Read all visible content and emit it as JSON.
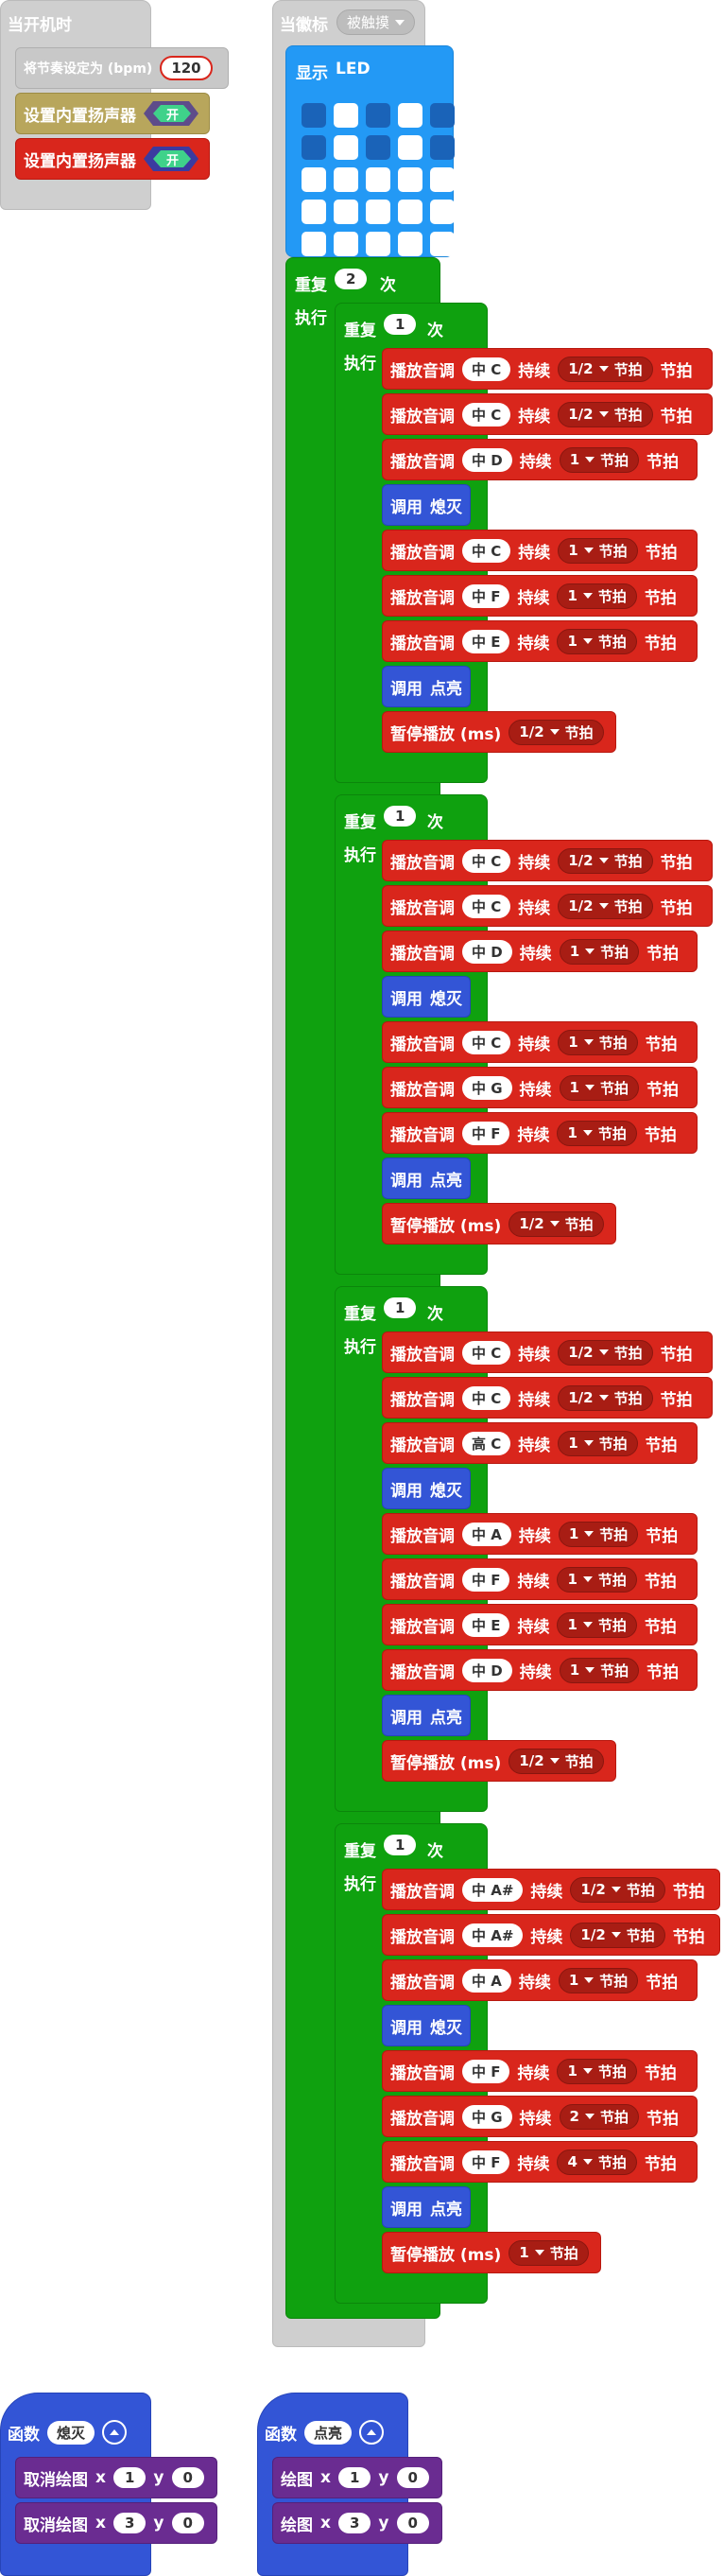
{
  "on_start": {
    "hat": "当开机时",
    "set_tempo_label": "将节奏设定为 (bpm)",
    "tempo_value": "120",
    "speaker1_label": "设置内置扬声器",
    "speaker1_value": "开",
    "speaker2_label": "设置内置扬声器",
    "speaker2_value": "开"
  },
  "on_gesture": {
    "hat": "当徽标",
    "gesture_value": "被触摸",
    "show_led_label": "显示",
    "show_led_suffix": "LED",
    "led_grid": [
      [
        0,
        1,
        0,
        1,
        0
      ],
      [
        0,
        1,
        0,
        1,
        0
      ],
      [
        1,
        1,
        1,
        1,
        1
      ],
      [
        1,
        1,
        1,
        1,
        1
      ],
      [
        1,
        1,
        1,
        1,
        1
      ]
    ],
    "colors": {
      "led_on": "#ffffff",
      "led_off": "#1a63b8"
    }
  },
  "repeat_outer": {
    "label": "重复",
    "count": "2",
    "suffix": "次",
    "do": "执行"
  },
  "repeat_inner": [
    {
      "label": "重复",
      "count": "1",
      "suffix": "次",
      "do": "执行",
      "rows": [
        {
          "type": "note",
          "note": "中 C",
          "beat": "1/2"
        },
        {
          "type": "note",
          "note": "中 C",
          "beat": "1/2"
        },
        {
          "type": "note",
          "note": "中 D",
          "beat": "1"
        },
        {
          "type": "call",
          "name": "熄灭"
        },
        {
          "type": "note",
          "note": "中 C",
          "beat": "1"
        },
        {
          "type": "note",
          "note": "中 F",
          "beat": "1"
        },
        {
          "type": "note",
          "note": "中 E",
          "beat": "1"
        },
        {
          "type": "call",
          "name": "点亮"
        },
        {
          "type": "rest",
          "beat": "1/2"
        }
      ]
    },
    {
      "label": "重复",
      "count": "1",
      "suffix": "次",
      "do": "执行",
      "rows": [
        {
          "type": "note",
          "note": "中 C",
          "beat": "1/2"
        },
        {
          "type": "note",
          "note": "中 C",
          "beat": "1/2"
        },
        {
          "type": "note",
          "note": "中 D",
          "beat": "1"
        },
        {
          "type": "call",
          "name": "熄灭"
        },
        {
          "type": "note",
          "note": "中 C",
          "beat": "1"
        },
        {
          "type": "note",
          "note": "中 G",
          "beat": "1"
        },
        {
          "type": "note",
          "note": "中 F",
          "beat": "1"
        },
        {
          "type": "call",
          "name": "点亮"
        },
        {
          "type": "rest",
          "beat": "1/2"
        }
      ]
    },
    {
      "label": "重复",
      "count": "1",
      "suffix": "次",
      "do": "执行",
      "rows": [
        {
          "type": "note",
          "note": "中 C",
          "beat": "1/2"
        },
        {
          "type": "note",
          "note": "中 C",
          "beat": "1/2"
        },
        {
          "type": "note",
          "note": "高 C",
          "beat": "1"
        },
        {
          "type": "call",
          "name": "熄灭"
        },
        {
          "type": "note",
          "note": "中 A",
          "beat": "1"
        },
        {
          "type": "note",
          "note": "中 F",
          "beat": "1"
        },
        {
          "type": "note",
          "note": "中 E",
          "beat": "1"
        },
        {
          "type": "note",
          "note": "中 D",
          "beat": "1"
        },
        {
          "type": "call",
          "name": "点亮"
        },
        {
          "type": "rest",
          "beat": "1/2"
        }
      ]
    },
    {
      "label": "重复",
      "count": "1",
      "suffix": "次",
      "do": "执行",
      "rows": [
        {
          "type": "note",
          "note": "中 A#",
          "beat": "1/2"
        },
        {
          "type": "note",
          "note": "中 A#",
          "beat": "1/2"
        },
        {
          "type": "note",
          "note": "中 A",
          "beat": "1"
        },
        {
          "type": "call",
          "name": "熄灭"
        },
        {
          "type": "note",
          "note": "中 F",
          "beat": "1"
        },
        {
          "type": "note",
          "note": "中 G",
          "beat": "2"
        },
        {
          "type": "note",
          "note": "中 F",
          "beat": "4"
        },
        {
          "type": "call",
          "name": "点亮"
        },
        {
          "type": "rest",
          "beat": "1"
        }
      ]
    }
  ],
  "text": {
    "play_tone": "播放音调",
    "duration": "持续",
    "beat_unit": "节拍",
    "beat_word": "节拍",
    "call": "调用",
    "rest_label": "暂停播放 (ms)"
  },
  "functions": [
    {
      "label": "函数",
      "name": "熄灭",
      "rows": [
        {
          "label": "取消绘图",
          "x": "1",
          "y": "0"
        },
        {
          "label": "取消绘图",
          "x": "3",
          "y": "0"
        }
      ]
    },
    {
      "label": "函数",
      "name": "点亮",
      "rows": [
        {
          "label": "绘图",
          "x": "1",
          "y": "0"
        },
        {
          "label": "绘图",
          "x": "3",
          "y": "0"
        }
      ]
    }
  ],
  "coord_labels": {
    "x": "x",
    "y": "y"
  }
}
